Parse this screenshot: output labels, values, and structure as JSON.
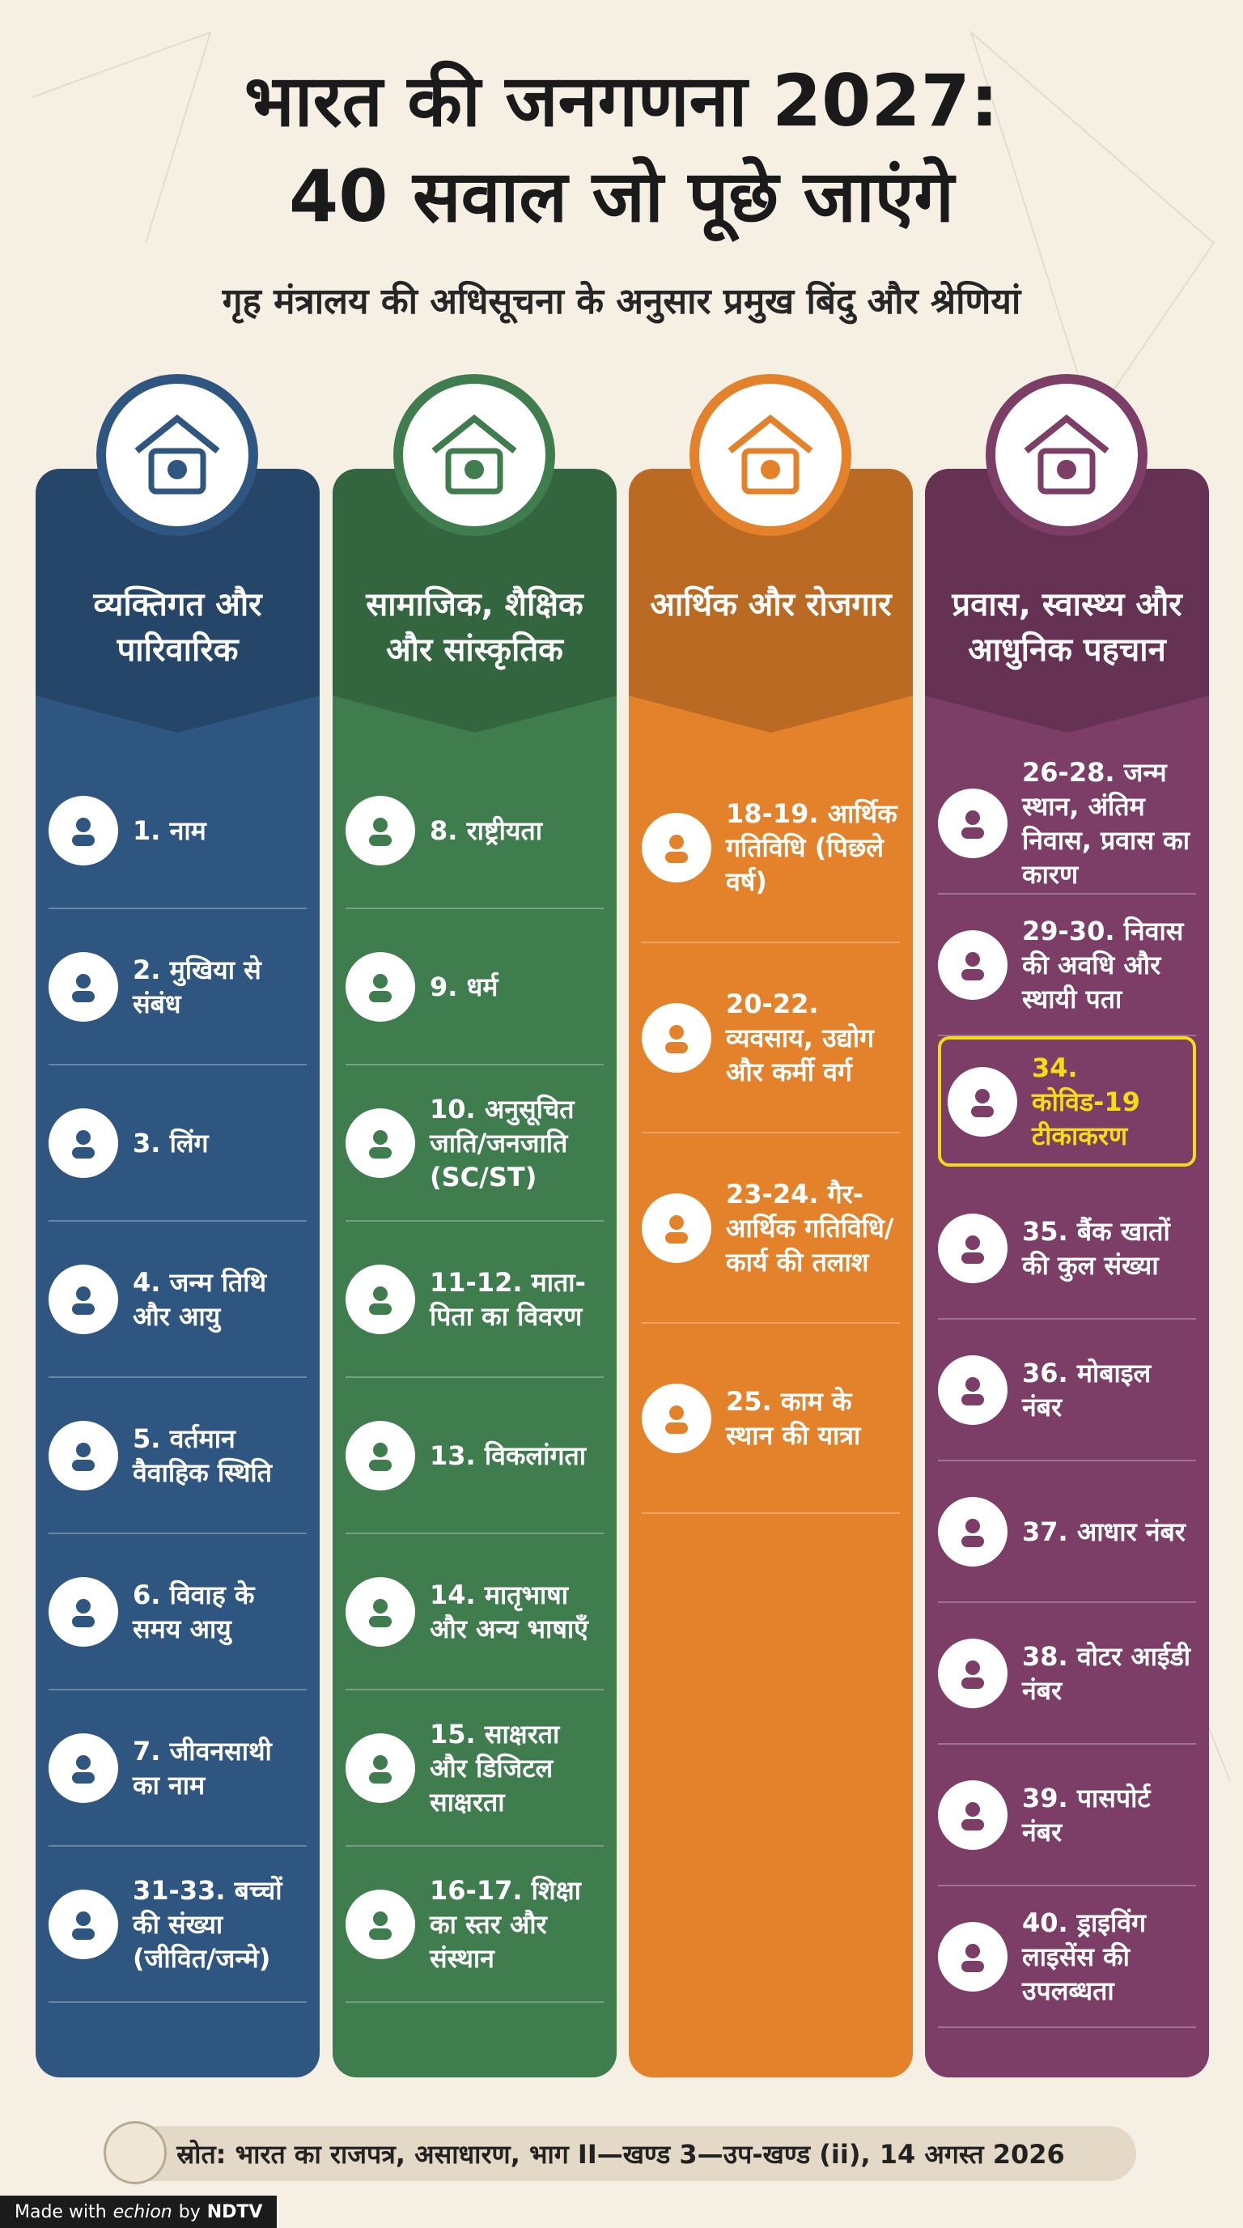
{
  "header": {
    "title_lines": [
      "भारत की जनगणना 2027:",
      "40 सवाल जो पूछे जाएंगे"
    ],
    "subtitle": "गृह मंत्रालय की अधिसूचना के अनुसार प्रमुख बिंदु और श्रेणियां"
  },
  "columns": [
    {
      "title": "व्यक्तिगत और पारिवारिक",
      "color": "#2f5680",
      "items": [
        {
          "text": "1. नाम"
        },
        {
          "text": "2. मुखिया से संबंध"
        },
        {
          "text": "3. लिंग"
        },
        {
          "text": "4. जन्म तिथि और आयु"
        },
        {
          "text": "5. वर्तमान वैवाहिक स्थिति"
        },
        {
          "text": "6. विवाह के समय आयु"
        },
        {
          "text": "7. जीवनसाथी का नाम"
        },
        {
          "text": "31-33. बच्चों की संख्या (जीवित/जन्मे)"
        }
      ]
    },
    {
      "title": "सामाजिक, शैक्षिक और सांस्कृतिक",
      "color": "#3f7d4e",
      "items": [
        {
          "text": "8. राष्ट्रीयता"
        },
        {
          "text": "9. धर्म"
        },
        {
          "text": "10. अनुसूचित जाति/जनजाति (SC/ST)"
        },
        {
          "text": "11-12. माता-पिता का विवरण"
        },
        {
          "text": "13. विकलांगता"
        },
        {
          "text": "14. मातृभाषा और अन्य भाषाएँ"
        },
        {
          "text": "15. साक्षरता और डिजिटल साक्षरता"
        },
        {
          "text": "16-17. शिक्षा का स्तर और संस्थान"
        }
      ]
    },
    {
      "title": "आर्थिक और रोजगार",
      "color": "#e3822a",
      "items": [
        {
          "text": "18-19. आर्थिक गतिविधि (पिछले वर्ष)"
        },
        {
          "text": "20-22. व्यवसाय, उद्योग और कर्मी वर्ग"
        },
        {
          "text": "23-24. गैर-आर्थिक गतिविधि/कार्य की तलाश"
        },
        {
          "text": "25. काम के स्थान की यात्रा"
        }
      ]
    },
    {
      "title": "प्रवास, स्वास्थ्य और आधुनिक पहचान",
      "color": "#7c3d67",
      "items": [
        {
          "text": "26-28. जन्म स्थान, अंतिम निवास, प्रवास का कारण"
        },
        {
          "text": "29-30. निवास की अवधि और स्थायी पता"
        },
        {
          "text": "34. कोविड-19 टीकाकरण",
          "highlight": true
        },
        {
          "text": "35. बैंक खातों की कुल संख्या"
        },
        {
          "text": "36. मोबाइल नंबर"
        },
        {
          "text": "37. आधार नंबर"
        },
        {
          "text": "38. वोटर आईडी नंबर"
        },
        {
          "text": "39. पासपोर्ट नंबर"
        },
        {
          "text": "40. ड्राइविंग लाइसेंस की उपलब्धता"
        }
      ]
    }
  ],
  "source": "स्रोत: भारत का राजपत्र, असाधारण, भाग II—खण्ड 3—उप-खण्ड (ii), 14 अगस्त 2026",
  "branding": {
    "made_with": "Made with",
    "echion": "echion",
    "by": "by",
    "ndtv": "NDTV"
  }
}
